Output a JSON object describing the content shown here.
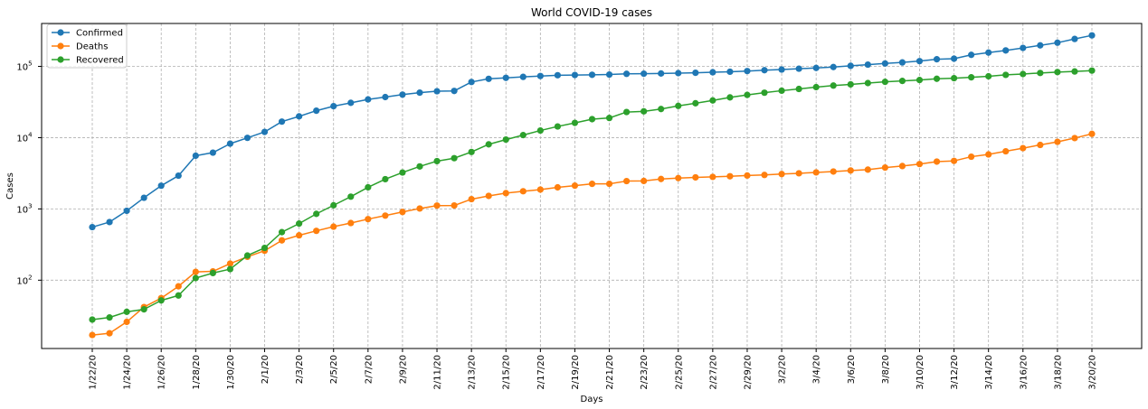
{
  "chart_data": {
    "type": "line",
    "title": "World COVID-19 cases",
    "xlabel": "Days",
    "ylabel": "Cases",
    "yscale": "log",
    "ylim": [
      11,
      400000
    ],
    "grid": true,
    "legend_position": "top-left",
    "x": [
      "1/22/20",
      "1/23/20",
      "1/24/20",
      "1/25/20",
      "1/26/20",
      "1/27/20",
      "1/28/20",
      "1/29/20",
      "1/30/20",
      "1/31/20",
      "2/1/20",
      "2/2/20",
      "2/3/20",
      "2/4/20",
      "2/5/20",
      "2/6/20",
      "2/7/20",
      "2/8/20",
      "2/9/20",
      "2/10/20",
      "2/11/20",
      "2/12/20",
      "2/13/20",
      "2/14/20",
      "2/15/20",
      "2/16/20",
      "2/17/20",
      "2/18/20",
      "2/19/20",
      "2/20/20",
      "2/21/20",
      "2/22/20",
      "2/23/20",
      "2/24/20",
      "2/25/20",
      "2/26/20",
      "2/27/20",
      "2/28/20",
      "2/29/20",
      "3/1/20",
      "3/2/20",
      "3/3/20",
      "3/4/20",
      "3/5/20",
      "3/6/20",
      "3/7/20",
      "3/8/20",
      "3/9/20",
      "3/10/20",
      "3/11/20",
      "3/12/20",
      "3/13/20",
      "3/14/20",
      "3/15/20",
      "3/16/20",
      "3/17/20",
      "3/18/20",
      "3/19/20",
      "3/20/20"
    ],
    "xticks": [
      "1/22/20",
      "1/24/20",
      "1/26/20",
      "1/28/20",
      "1/30/20",
      "2/1/20",
      "2/3/20",
      "2/5/20",
      "2/7/20",
      "2/9/20",
      "2/11/20",
      "2/13/20",
      "2/15/20",
      "2/17/20",
      "2/19/20",
      "2/21/20",
      "2/23/20",
      "2/25/20",
      "2/27/20",
      "2/29/20",
      "3/2/20",
      "3/4/20",
      "3/6/20",
      "3/8/20",
      "3/10/20",
      "3/12/20",
      "3/14/20",
      "3/16/20",
      "3/18/20",
      "3/20/20"
    ],
    "yticks": [
      {
        "value": 100,
        "base": "10",
        "exp": "2"
      },
      {
        "value": 1000,
        "base": "10",
        "exp": "3"
      },
      {
        "value": 10000,
        "base": "10",
        "exp": "4"
      },
      {
        "value": 100000,
        "base": "10",
        "exp": "5"
      }
    ],
    "series": [
      {
        "name": "Confirmed",
        "color": "#1f77b4",
        "values": [
          555,
          654,
          941,
          1434,
          2118,
          2927,
          5578,
          6166,
          8234,
          9927,
          12038,
          16787,
          19887,
          23898,
          27643,
          30802,
          34395,
          37129,
          40160,
          42769,
          44811,
          45229,
          60381,
          66909,
          69052,
          71235,
          73270,
          75152,
          75653,
          76206,
          76820,
          78595,
          78981,
          79546,
          80397,
          81375,
          82739,
          84124,
          86013,
          88371,
          90306,
          92840,
          95120,
          97886,
          101801,
          105847,
          109821,
          113590,
          118620,
          125875,
          128352,
          145205,
          156101,
          167454,
          181574,
          197102,
          214821,
          242570,
          272208
        ]
      },
      {
        "name": "Deaths",
        "color": "#ff7f0e",
        "values": [
          17,
          18,
          26,
          42,
          56,
          82,
          131,
          133,
          171,
          213,
          259,
          362,
          426,
          492,
          564,
          634,
          719,
          806,
          906,
          1013,
          1113,
          1118,
          1371,
          1523,
          1666,
          1770,
          1868,
          2007,
          2122,
          2247,
          2251,
          2458,
          2469,
          2629,
          2708,
          2770,
          2814,
          2872,
          2941,
          2996,
          3085,
          3160,
          3254,
          3348,
          3460,
          3558,
          3803,
          3996,
          4262,
          4615,
          4720,
          5404,
          5819,
          6440,
          7126,
          7905,
          8733,
          9867,
          11299
        ]
      },
      {
        "name": "Recovered",
        "color": "#2ca02c",
        "values": [
          28,
          30,
          36,
          39,
          52,
          61,
          107,
          126,
          143,
          222,
          284,
          472,
          623,
          852,
          1124,
          1487,
          2011,
          2616,
          3244,
          3946,
          4683,
          5150,
          6295,
          8058,
          9395,
          10865,
          12583,
          14352,
          16121,
          18177,
          18890,
          22886,
          23394,
          25227,
          27905,
          30384,
          33277,
          36711,
          39782,
          42716,
          45602,
          48228,
          51170,
          53796,
          55865,
          58358,
          60694,
          62494,
          64404,
          67003,
          68324,
          70251,
          72624,
          76034,
          78088,
          80840,
          83207,
          84854,
          87256
        ]
      }
    ]
  }
}
